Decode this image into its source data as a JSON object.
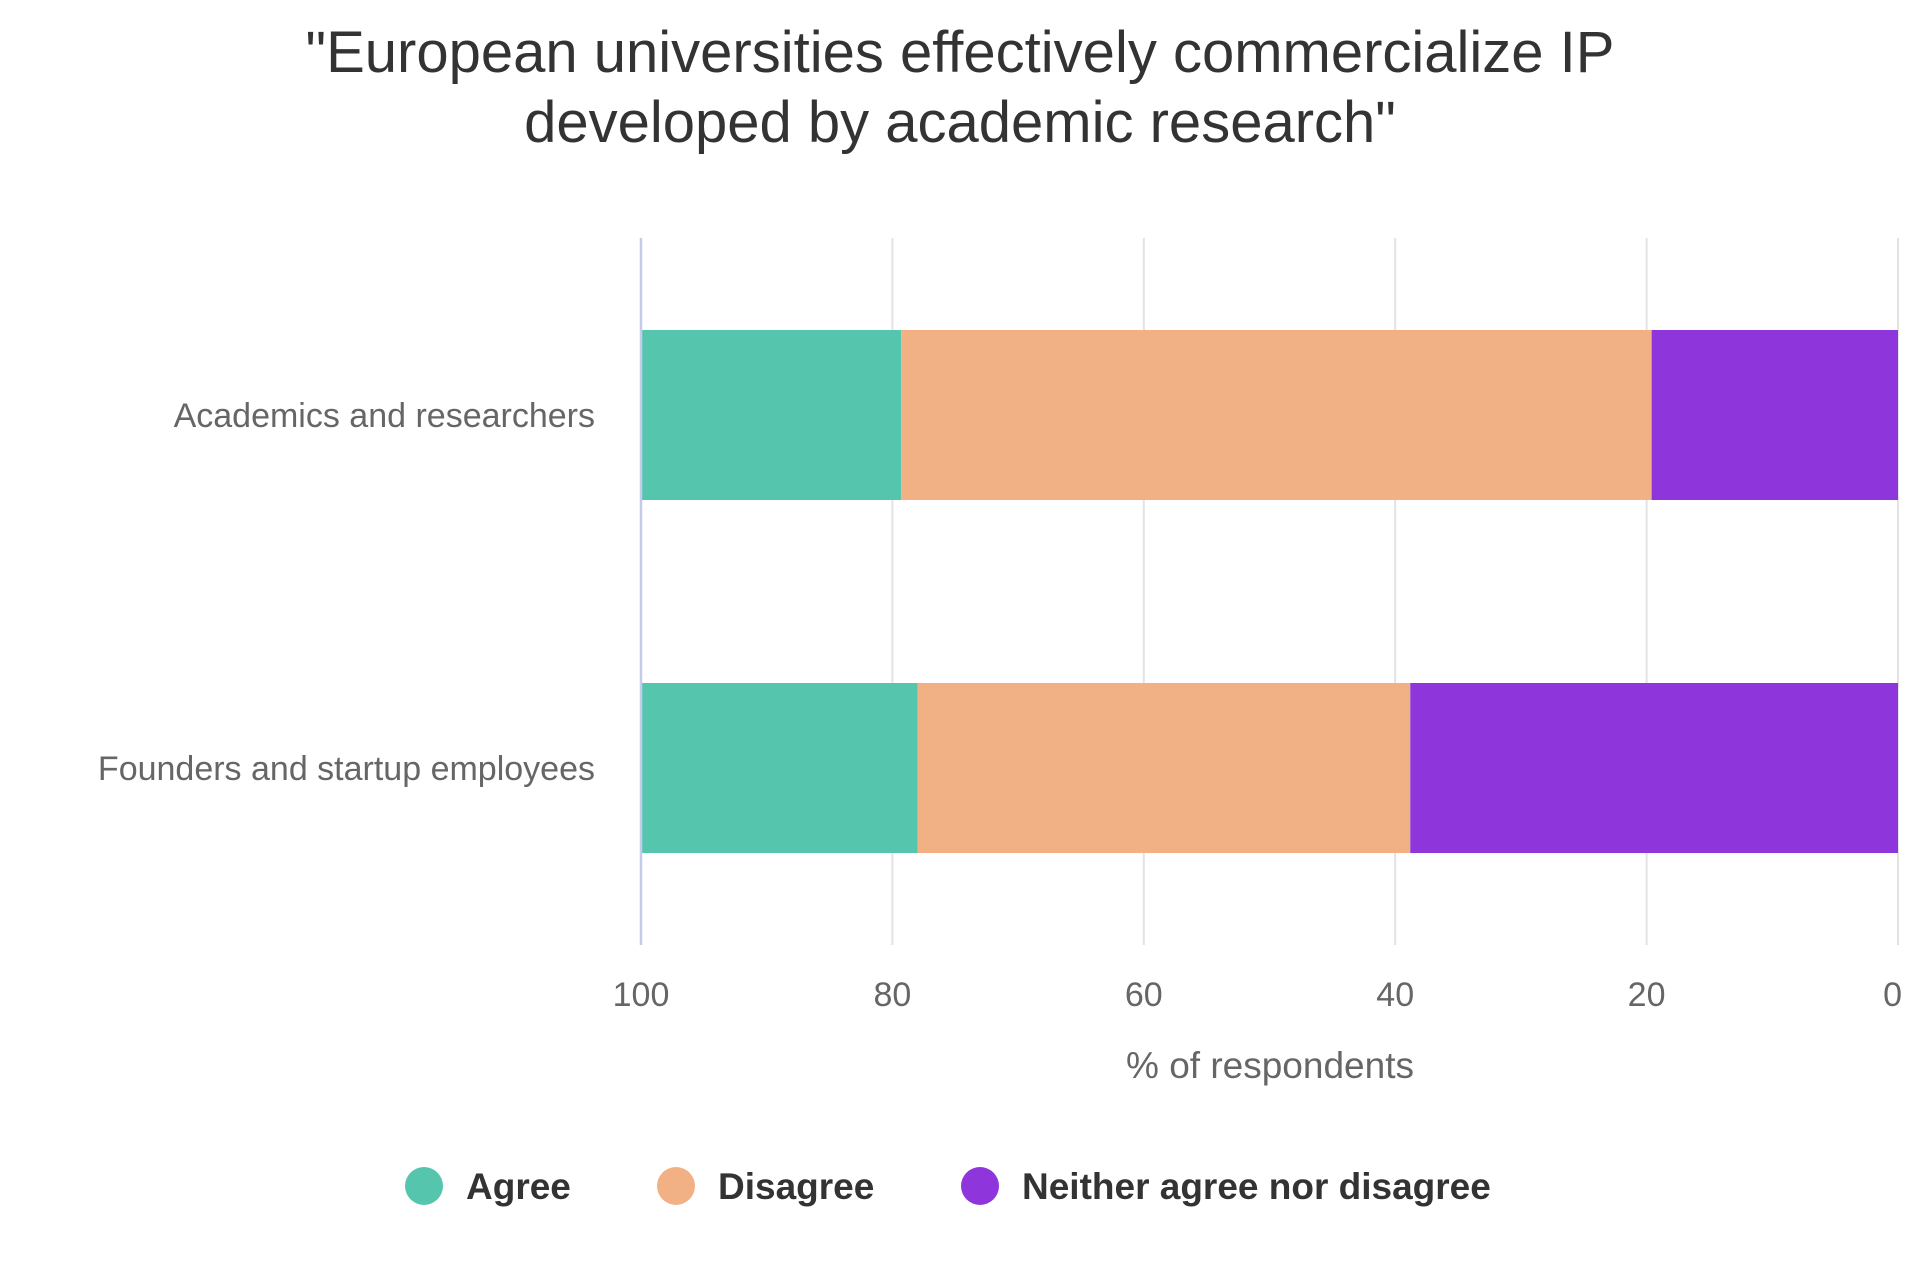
{
  "chart_data": {
    "type": "bar",
    "orientation": "horizontal",
    "stacked": true,
    "title": "\"European universities effectively commercialize IP developed by academic research\"",
    "title_lines": [
      "\"European universities effectively commercialize IP",
      "developed by academic research\""
    ],
    "xlabel": "% of respondents",
    "ylabel": "",
    "xlim": [
      100,
      0
    ],
    "x_reversed": true,
    "xticks": [
      100,
      80,
      60,
      40,
      20,
      0
    ],
    "xtick_labels": [
      "100",
      "80",
      "60",
      "40",
      "20",
      "0"
    ],
    "grid": true,
    "categories": [
      "Academics and researchers",
      "Founders and startup employees"
    ],
    "series": [
      {
        "name": "Agree",
        "color": "#55c6ad",
        "values": [
          20.7,
          22.0
        ]
      },
      {
        "name": "Disagree",
        "color": "#f2b085",
        "values": [
          59.7,
          39.2
        ]
      },
      {
        "name": "Neither agree nor disagree",
        "color": "#8e35dc",
        "values": [
          19.6,
          38.8
        ]
      }
    ],
    "legend": {
      "position": "bottom",
      "items": [
        "Agree",
        "Disagree",
        "Neither agree nor disagree"
      ]
    }
  }
}
